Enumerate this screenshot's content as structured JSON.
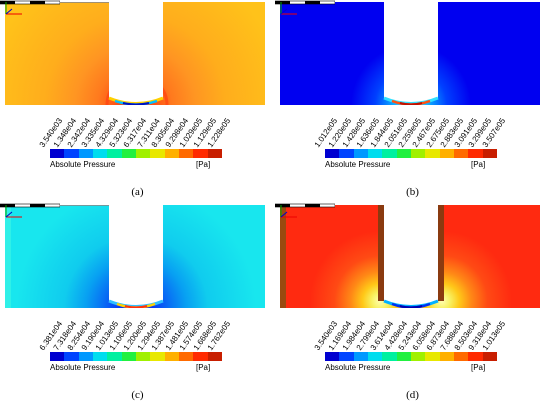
{
  "legend": {
    "title": "Absolute Pressure",
    "unit": "[Pa]"
  },
  "colormap": [
    "#0000d0",
    "#0044ff",
    "#0099ff",
    "#00ddee",
    "#00f0a0",
    "#22f040",
    "#a0f000",
    "#e8e800",
    "#ffb000",
    "#ff6a00",
    "#ff2a00",
    "#c81e00"
  ],
  "panels": [
    {
      "caption": "(a)",
      "ticks": [
        "3.540e03",
        "1.348e04",
        "2.342e04",
        "3.335e04",
        "4.329e04",
        "5.323e04",
        "6.317e04",
        "7.311e04",
        "8.305e04",
        "9.298e04",
        "1.029e05",
        "1.129e05",
        "1.228e05"
      ],
      "field": {
        "background": "#ffc21a",
        "gradient": [
          "#ffb71a",
          "#ffa21e",
          "#ff8d22",
          "#ff7a1e",
          "#ff5a16",
          "#f03010"
        ]
      }
    },
    {
      "caption": "(b)",
      "ticks": [
        "1.012e05",
        "1.220e05",
        "1.428e05",
        "1.636e05",
        "1.844e05",
        "2.051e05",
        "2.259e05",
        "2.467e05",
        "2.675e05",
        "2.883e05",
        "3.091e05",
        "3.299e05",
        "3.507e05"
      ],
      "field": {
        "background": "#0000f0",
        "gradient": [
          "#0014ff",
          "#0040ff",
          "#0070ff",
          "#00aaff",
          "#30e0ff",
          "#a0f8ff"
        ]
      }
    },
    {
      "caption": "(c)",
      "ticks": [
        "6.381e04",
        "7.318e04",
        "8.254e04",
        "9.190e04",
        "1.013e05",
        "1.106e05",
        "1.200e05",
        "1.294e05",
        "1.387e05",
        "1.481e05",
        "1.574e05",
        "1.668e05",
        "1.762e05"
      ],
      "field": {
        "background": "#18e6ee",
        "gradient": [
          "#10d8ee",
          "#0ab8f0",
          "#0890f2",
          "#0866f4",
          "#0a3ef6",
          "#1010f8"
        ]
      }
    },
    {
      "caption": "(d)",
      "ticks": [
        "3.540e03",
        "1.169e04",
        "1.984e04",
        "2.799e04",
        "3.614e04",
        "4.428e04",
        "5.243e04",
        "6.058e04",
        "6.873e04",
        "7.688e04",
        "8.503e04",
        "9.318e04",
        "1.013e05"
      ],
      "field": {
        "background": "#ff2a10",
        "gradient": [
          "#ff3a14",
          "#ff6a16",
          "#ffa018",
          "#ffd81a",
          "#f8f870",
          "#ffffc0"
        ]
      }
    }
  ]
}
